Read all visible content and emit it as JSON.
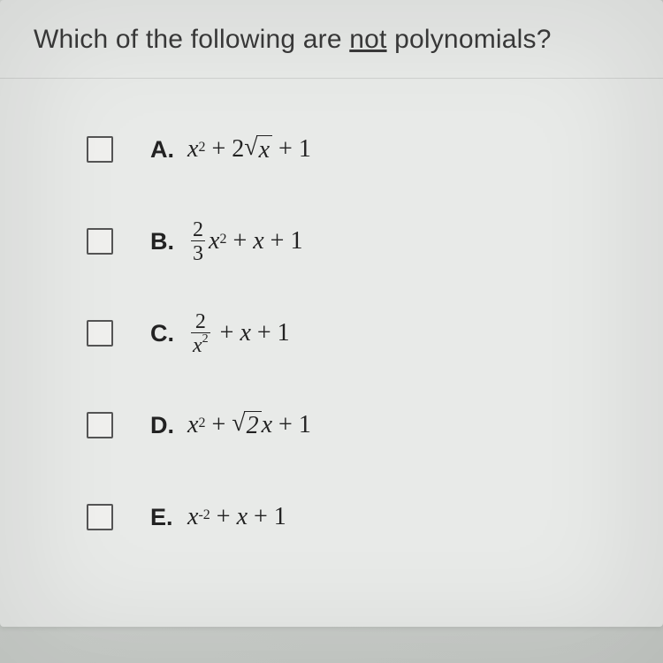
{
  "question": {
    "prefix": "Which of the following are ",
    "underlined": "not",
    "suffix": " polynomials?"
  },
  "options": [
    {
      "letter": "A.",
      "type": "A"
    },
    {
      "letter": "B.",
      "type": "B"
    },
    {
      "letter": "C.",
      "type": "C"
    },
    {
      "letter": "D.",
      "type": "D"
    },
    {
      "letter": "E.",
      "type": "E"
    }
  ],
  "expressions": {
    "A": {
      "terms": [
        "x",
        "2",
        " + 2",
        "√",
        "x",
        " + 1"
      ]
    },
    "B": {
      "frac_num": "2",
      "frac_den": "3",
      "rest": [
        "x",
        "2",
        " + ",
        "x",
        " + 1"
      ]
    },
    "C": {
      "frac_num": "2",
      "frac_den_var": "x",
      "frac_den_exp": "2",
      "rest": [
        " + ",
        "x",
        " + 1"
      ]
    },
    "D": {
      "terms": [
        "x",
        "2",
        " + ",
        "√",
        "2",
        "x",
        " + 1"
      ]
    },
    "E": {
      "terms": [
        "x",
        "-2",
        " + ",
        "x",
        " + 1"
      ]
    }
  },
  "styling": {
    "background_gradient": [
      "#d8dcd8",
      "#ccd0cc",
      "#c8ccc8"
    ],
    "card_bg": "#e8eae8",
    "text_color": "#3a3a3a",
    "expr_color": "#222",
    "checkbox_border": "#555",
    "divider": "#d0d2d0",
    "question_fontsize": 30,
    "label_fontsize": 27,
    "expr_fontsize": 28
  }
}
